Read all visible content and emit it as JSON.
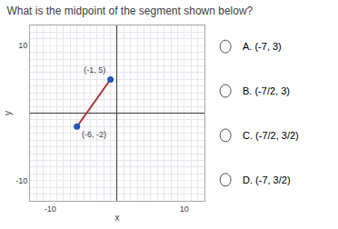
{
  "chart_data": {
    "type": "line",
    "title": "What is the midpoint of the segment shown below?",
    "x": [
      -6,
      -1
    ],
    "values": [
      -2,
      5
    ],
    "point_labels": [
      "(-6, -2)",
      "(-1, 5)"
    ],
    "color": "#b04040",
    "colors": [
      "#2255bb",
      "#2255bb"
    ],
    "marker": "circle",
    "xlabel": "x",
    "ylabel": "y",
    "xlim": [
      -13,
      13
    ],
    "ylim": [
      -13,
      13
    ],
    "xticks": [
      -10,
      10
    ],
    "yticks": [
      -10,
      10
    ],
    "grid": true,
    "answer_choices": [
      "A. (-7, 3)",
      "B. (-7/2, 3)",
      "C. (-7/2, 3/2)",
      "D. (-7, 3/2)"
    ]
  }
}
